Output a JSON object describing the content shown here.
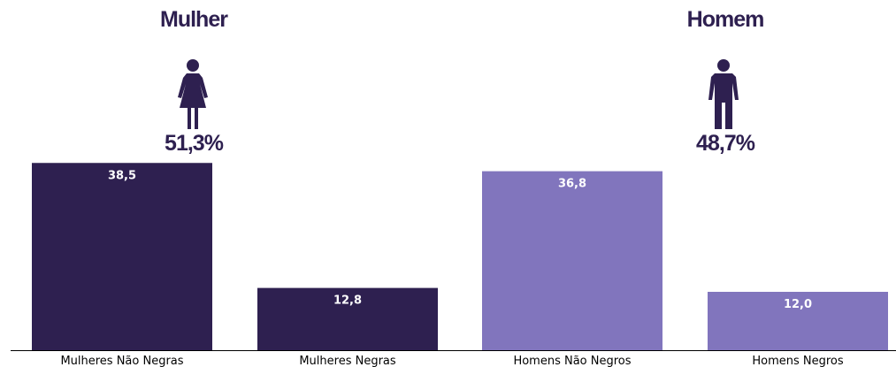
{
  "groups": [
    {
      "title": "Mulher",
      "share": "51,3%",
      "icon": "female-person-icon"
    },
    {
      "title": "Homem",
      "share": "48,7%",
      "icon": "male-person-icon"
    }
  ],
  "colors": {
    "dark": "#2e2050",
    "light": "#8175bd",
    "text": "#2e2050"
  },
  "chart_data": {
    "type": "bar",
    "categories": [
      "Mulheres Não Negras",
      "Mulheres Negras",
      "Homens Não Negros",
      "Homens Negros"
    ],
    "values": [
      38.5,
      12.8,
      36.8,
      12.0
    ],
    "value_labels": [
      "38,5",
      "12,8",
      "36,8",
      "12,0"
    ],
    "bar_colors": [
      "#2e2050",
      "#2e2050",
      "#8175bd",
      "#8175bd"
    ],
    "ylim": [
      0,
      40
    ],
    "grid": false
  }
}
